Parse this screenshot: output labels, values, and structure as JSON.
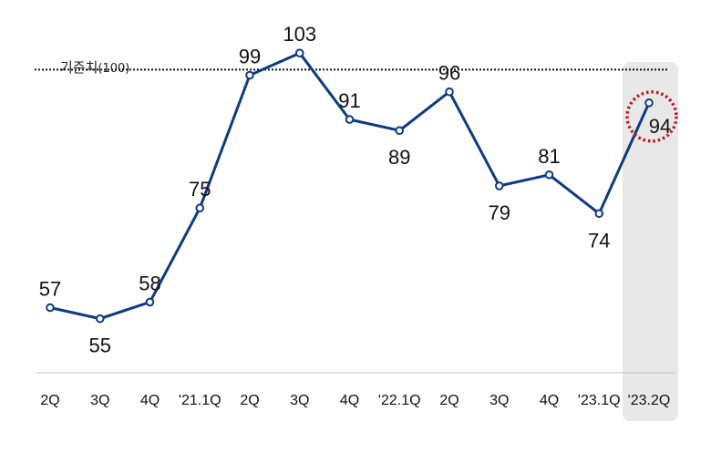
{
  "chart_data": {
    "type": "line",
    "title": "",
    "xlabel": "",
    "ylabel": "",
    "categories": [
      "2Q",
      "3Q",
      "4Q",
      "'21.1Q",
      "2Q",
      "3Q",
      "4Q",
      "'22.1Q",
      "2Q",
      "3Q",
      "4Q",
      "'23.1Q",
      "'23.2Q"
    ],
    "series": [
      {
        "values": [
          57,
          55,
          58,
          75,
          99,
          103,
          91,
          89,
          96,
          79,
          81,
          74,
          94
        ]
      }
    ],
    "ylim": [
      50,
      106
    ],
    "reference_line": {
      "value": 100,
      "label": "기준치",
      "unit": "(100)"
    },
    "highlight": {
      "category_index": 12
    },
    "grid": false,
    "colors": {
      "line": "#0d3a82",
      "marker_fill": "#ffffff",
      "reference_line": "#111111",
      "highlight_band": "#e8e8e8",
      "highlight_circle": "#c0181e",
      "baseline": "#bfbfbf"
    }
  }
}
